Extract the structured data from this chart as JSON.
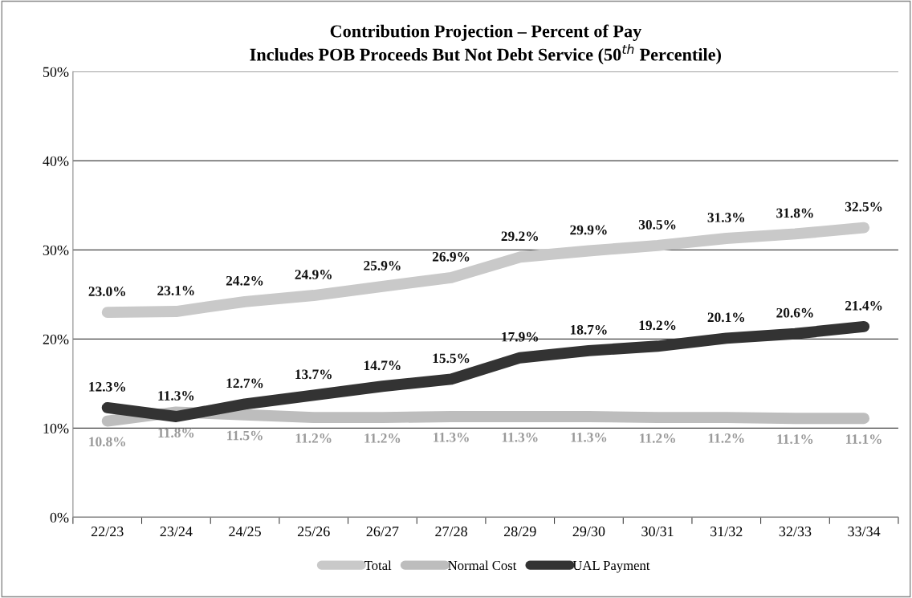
{
  "chart_data": {
    "type": "line",
    "title": "Contribution Projection – Percent of Pay\nIncludes POB Proceeds But Not Debt Service (50$^{th}$ Percentile)",
    "categories": [
      "22/23",
      "23/24",
      "24/25",
      "25/26",
      "26/27",
      "27/28",
      "28/29",
      "29/30",
      "30/31",
      "31/32",
      "32/33",
      "33/34"
    ],
    "series": [
      {
        "name": "Total",
        "color": "#c9c9c9",
        "values": [
          23.0,
          23.1,
          24.2,
          24.9,
          25.9,
          26.9,
          29.2,
          29.9,
          30.5,
          31.3,
          31.8,
          32.5
        ],
        "value_labels": [
          "23.0%",
          "23.1%",
          "24.2%",
          "24.9%",
          "25.9%",
          "26.9%",
          "29.2%",
          "29.9%",
          "30.5%",
          "31.3%",
          "31.8%",
          "32.5%"
        ]
      },
      {
        "name": "Normal Cost",
        "color": "#bdbdbd",
        "values": [
          10.8,
          11.8,
          11.5,
          11.2,
          11.2,
          11.3,
          11.3,
          11.3,
          11.2,
          11.2,
          11.1,
          11.1
        ],
        "value_labels": [
          "10.8%",
          "11.8%",
          "11.5%",
          "11.2%",
          "11.2%",
          "11.3%",
          "11.3%",
          "11.3%",
          "11.2%",
          "11.2%",
          "11.1%",
          "11.1%"
        ]
      },
      {
        "name": "UAL Payment",
        "color": "#333333",
        "values": [
          12.3,
          11.3,
          12.7,
          13.7,
          14.7,
          15.5,
          17.9,
          18.7,
          19.2,
          20.1,
          20.6,
          21.4
        ],
        "value_labels": [
          "12.3%",
          "11.3%",
          "12.7%",
          "13.7%",
          "14.7%",
          "15.5%",
          "17.9%",
          "18.7%",
          "19.2%",
          "20.1%",
          "20.6%",
          "21.4%"
        ]
      }
    ],
    "ylim": [
      0,
      50
    ],
    "yticks": [
      {
        "value": 0,
        "label": "0%"
      },
      {
        "value": 10,
        "label": "10%"
      },
      {
        "value": 20,
        "label": "20%"
      },
      {
        "value": 30,
        "label": "30%"
      },
      {
        "value": 40,
        "label": "40%"
      },
      {
        "value": 50,
        "label": "50%"
      }
    ],
    "grid": "y",
    "legend": "bottom",
    "line_style": "solid"
  }
}
